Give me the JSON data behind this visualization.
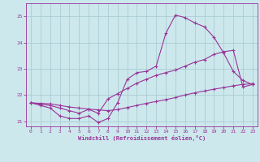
{
  "bg_color": "#cce8ec",
  "grid_color": "#aacdd4",
  "line_color": "#993399",
  "xlim": [
    -0.5,
    23.5
  ],
  "ylim": [
    20.8,
    25.5
  ],
  "xticks": [
    0,
    1,
    2,
    3,
    4,
    5,
    6,
    7,
    8,
    9,
    10,
    11,
    12,
    13,
    14,
    15,
    16,
    17,
    18,
    19,
    20,
    21,
    22,
    23
  ],
  "yticks": [
    21,
    22,
    23,
    24,
    25
  ],
  "xlabel": "Windchill (Refroidissement éolien,°C)",
  "line1_x": [
    0,
    1,
    2,
    3,
    4,
    5,
    6,
    7,
    8,
    9,
    10,
    11,
    12,
    13,
    14,
    15,
    16,
    17,
    18,
    19,
    20,
    21,
    22,
    23
  ],
  "line1_y": [
    21.7,
    21.6,
    21.5,
    21.2,
    21.1,
    21.1,
    21.2,
    20.95,
    21.1,
    21.7,
    22.6,
    22.85,
    22.9,
    23.1,
    24.35,
    25.05,
    24.95,
    24.75,
    24.6,
    24.2,
    23.6,
    22.9,
    22.55,
    22.4
  ],
  "line2_x": [
    0,
    1,
    2,
    3,
    4,
    5,
    6,
    7,
    8,
    9,
    10,
    11,
    12,
    13,
    14,
    15,
    16,
    17,
    18,
    19,
    20,
    21,
    22,
    23
  ],
  "line2_y": [
    21.7,
    21.65,
    21.6,
    21.5,
    21.4,
    21.3,
    21.45,
    21.3,
    21.85,
    22.05,
    22.25,
    22.45,
    22.6,
    22.75,
    22.85,
    22.95,
    23.1,
    23.25,
    23.35,
    23.55,
    23.65,
    23.7,
    22.3,
    22.4
  ],
  "line3_x": [
    0,
    1,
    2,
    3,
    4,
    5,
    6,
    7,
    8,
    9,
    10,
    11,
    12,
    13,
    14,
    15,
    16,
    17,
    18,
    19,
    20,
    21,
    22,
    23
  ],
  "line3_y": [
    21.7,
    21.68,
    21.66,
    21.6,
    21.54,
    21.5,
    21.46,
    21.43,
    21.4,
    21.44,
    21.52,
    21.6,
    21.68,
    21.75,
    21.82,
    21.9,
    22.0,
    22.08,
    22.15,
    22.22,
    22.28,
    22.35,
    22.4,
    22.43
  ]
}
